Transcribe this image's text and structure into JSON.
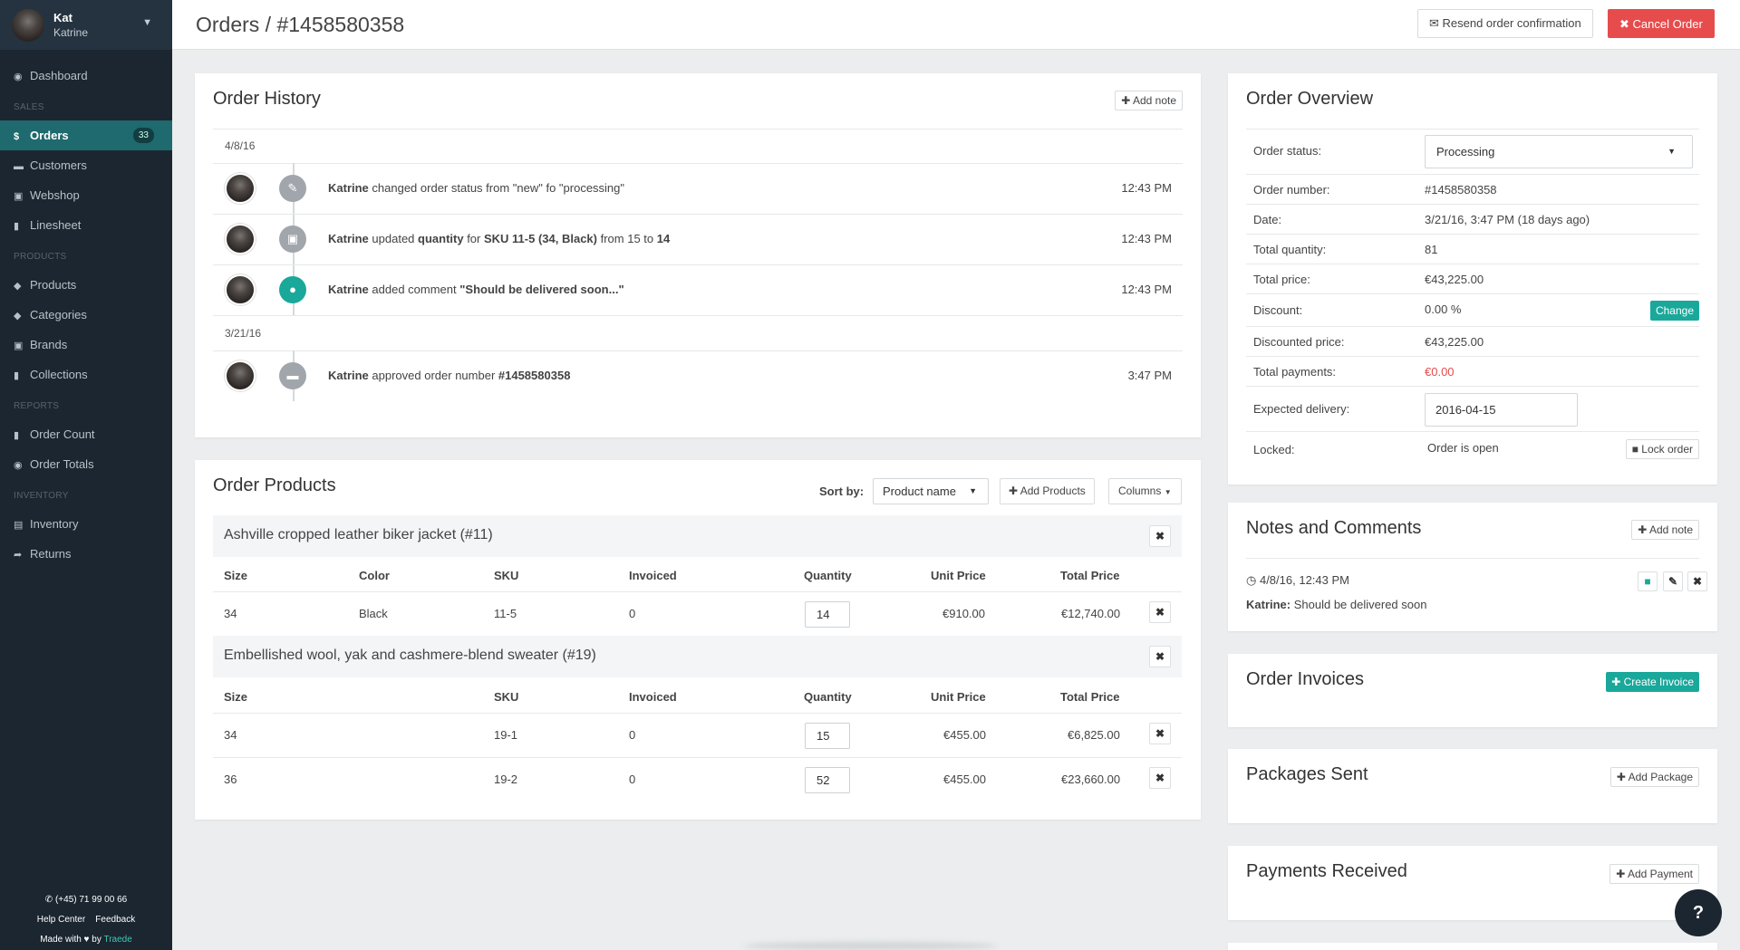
{
  "user": {
    "name": "Kat",
    "subname": "Katrine"
  },
  "sidebar": {
    "dashboard": "Dashboard",
    "sections": {
      "sales": "SALES",
      "products": "PRODUCTS",
      "reports": "REPORTS",
      "inventory": "INVENTORY"
    },
    "sales": [
      {
        "label": "Orders",
        "badge": "33"
      },
      {
        "label": "Customers"
      },
      {
        "label": "Webshop"
      },
      {
        "label": "Linesheet"
      }
    ],
    "products": [
      {
        "label": "Products"
      },
      {
        "label": "Categories"
      },
      {
        "label": "Brands"
      },
      {
        "label": "Collections"
      }
    ],
    "reports": [
      {
        "label": "Order Count"
      },
      {
        "label": "Order Totals"
      }
    ],
    "inventory": [
      {
        "label": "Inventory"
      },
      {
        "label": "Returns"
      }
    ],
    "footer": {
      "phone": "(+45) 71 99 00 66",
      "help": "Help Center",
      "feedback": "Feedback",
      "made_with": "Made with ♥ by",
      "brand": "Traede"
    }
  },
  "header": {
    "title": "Orders / #1458580358",
    "resend": "Resend order confirmation",
    "cancel": "Cancel Order"
  },
  "history": {
    "title": "Order History",
    "add_note": "Add note",
    "groups": [
      {
        "date": "4/8/16",
        "entries": [
          {
            "icon": "pencil-icon",
            "html_parts": [
              "Katrine",
              " changed order status from \"new\" fo \"processing\""
            ],
            "time": "12:43 PM"
          },
          {
            "icon": "cart-icon",
            "time": "12:43 PM"
          },
          {
            "icon": "comment-icon",
            "time": "12:43 PM"
          }
        ]
      },
      {
        "date": "3/21/16",
        "entries": [
          {
            "icon": "folder-icon",
            "time": "3:47 PM"
          }
        ]
      }
    ],
    "e1": {
      "who": "Katrine",
      "rest": " changed order status from \"new\" fo \"processing\""
    },
    "e2": {
      "who": "Katrine",
      "a": " updated ",
      "b": "quantity",
      "c": " for ",
      "d": "SKU 11-5 (34, Black)",
      "e": " from 15 to ",
      "f": "14"
    },
    "e3": {
      "who": "Katrine",
      "a": " added comment ",
      "b": "\"Should be delivered soon...\""
    },
    "e4": {
      "who": "Katrine",
      "a": " approved order number ",
      "b": "#1458580358"
    }
  },
  "products": {
    "title": "Order Products",
    "sort_by": "Sort by:",
    "sort_value": "Product name",
    "add_products": "Add Products",
    "columns": "Columns",
    "groups": [
      {
        "name": "Ashville cropped leather biker jacket (#11)",
        "headers": [
          "Size",
          "Color",
          "SKU",
          "Invoiced",
          "Quantity",
          "Unit Price",
          "Total Price"
        ],
        "rows": [
          {
            "size": "34",
            "color": "Black",
            "sku": "11-5",
            "invoiced": "0",
            "qty": "14",
            "unit": "€910.00",
            "total": "€12,740.00"
          }
        ]
      },
      {
        "name": "Embellished wool, yak and cashmere-blend sweater (#19)",
        "headers": [
          "Size",
          "SKU",
          "Invoiced",
          "Quantity",
          "Unit Price",
          "Total Price"
        ],
        "rows": [
          {
            "size": "34",
            "sku": "19-1",
            "invoiced": "0",
            "qty": "15",
            "unit": "€455.00",
            "total": "€6,825.00"
          },
          {
            "size": "36",
            "sku": "19-2",
            "invoiced": "0",
            "qty": "52",
            "unit": "€455.00",
            "total": "€23,660.00"
          }
        ]
      }
    ]
  },
  "overview": {
    "title": "Order Overview",
    "labels": {
      "status": "Order status:",
      "number": "Order number:",
      "date": "Date:",
      "total_qty": "Total quantity:",
      "total_price": "Total price:",
      "discount": "Discount:",
      "discounted": "Discounted price:",
      "payments": "Total payments:",
      "delivery": "Expected delivery:",
      "locked": "Locked:"
    },
    "values": {
      "status": "Processing",
      "number": "#1458580358",
      "date": "3/21/16, 3:47 PM (18 days ago)",
      "total_qty": "81",
      "total_price": "€43,225.00",
      "discount": "0.00 %",
      "discounted": "€43,225.00",
      "payments": "€0.00",
      "delivery": "2016-04-15",
      "locked": "Order is open"
    },
    "change": "Change",
    "lock": "Lock order"
  },
  "notes": {
    "title": "Notes and Comments",
    "add_note": "Add note",
    "date": "4/8/16, 12:43 PM",
    "who": "Katrine:",
    "text": " Should be delivered soon"
  },
  "invoices": {
    "title": "Order Invoices",
    "create": "Create Invoice"
  },
  "packages": {
    "title": "Packages Sent",
    "add": "Add Package"
  },
  "payments": {
    "title": "Payments Received",
    "add": "Add Payment"
  },
  "colors": {
    "accent": "#1aa89b",
    "danger": "#e74c4c",
    "sidebar": "#1b2630",
    "active": "#1e6a6e"
  }
}
